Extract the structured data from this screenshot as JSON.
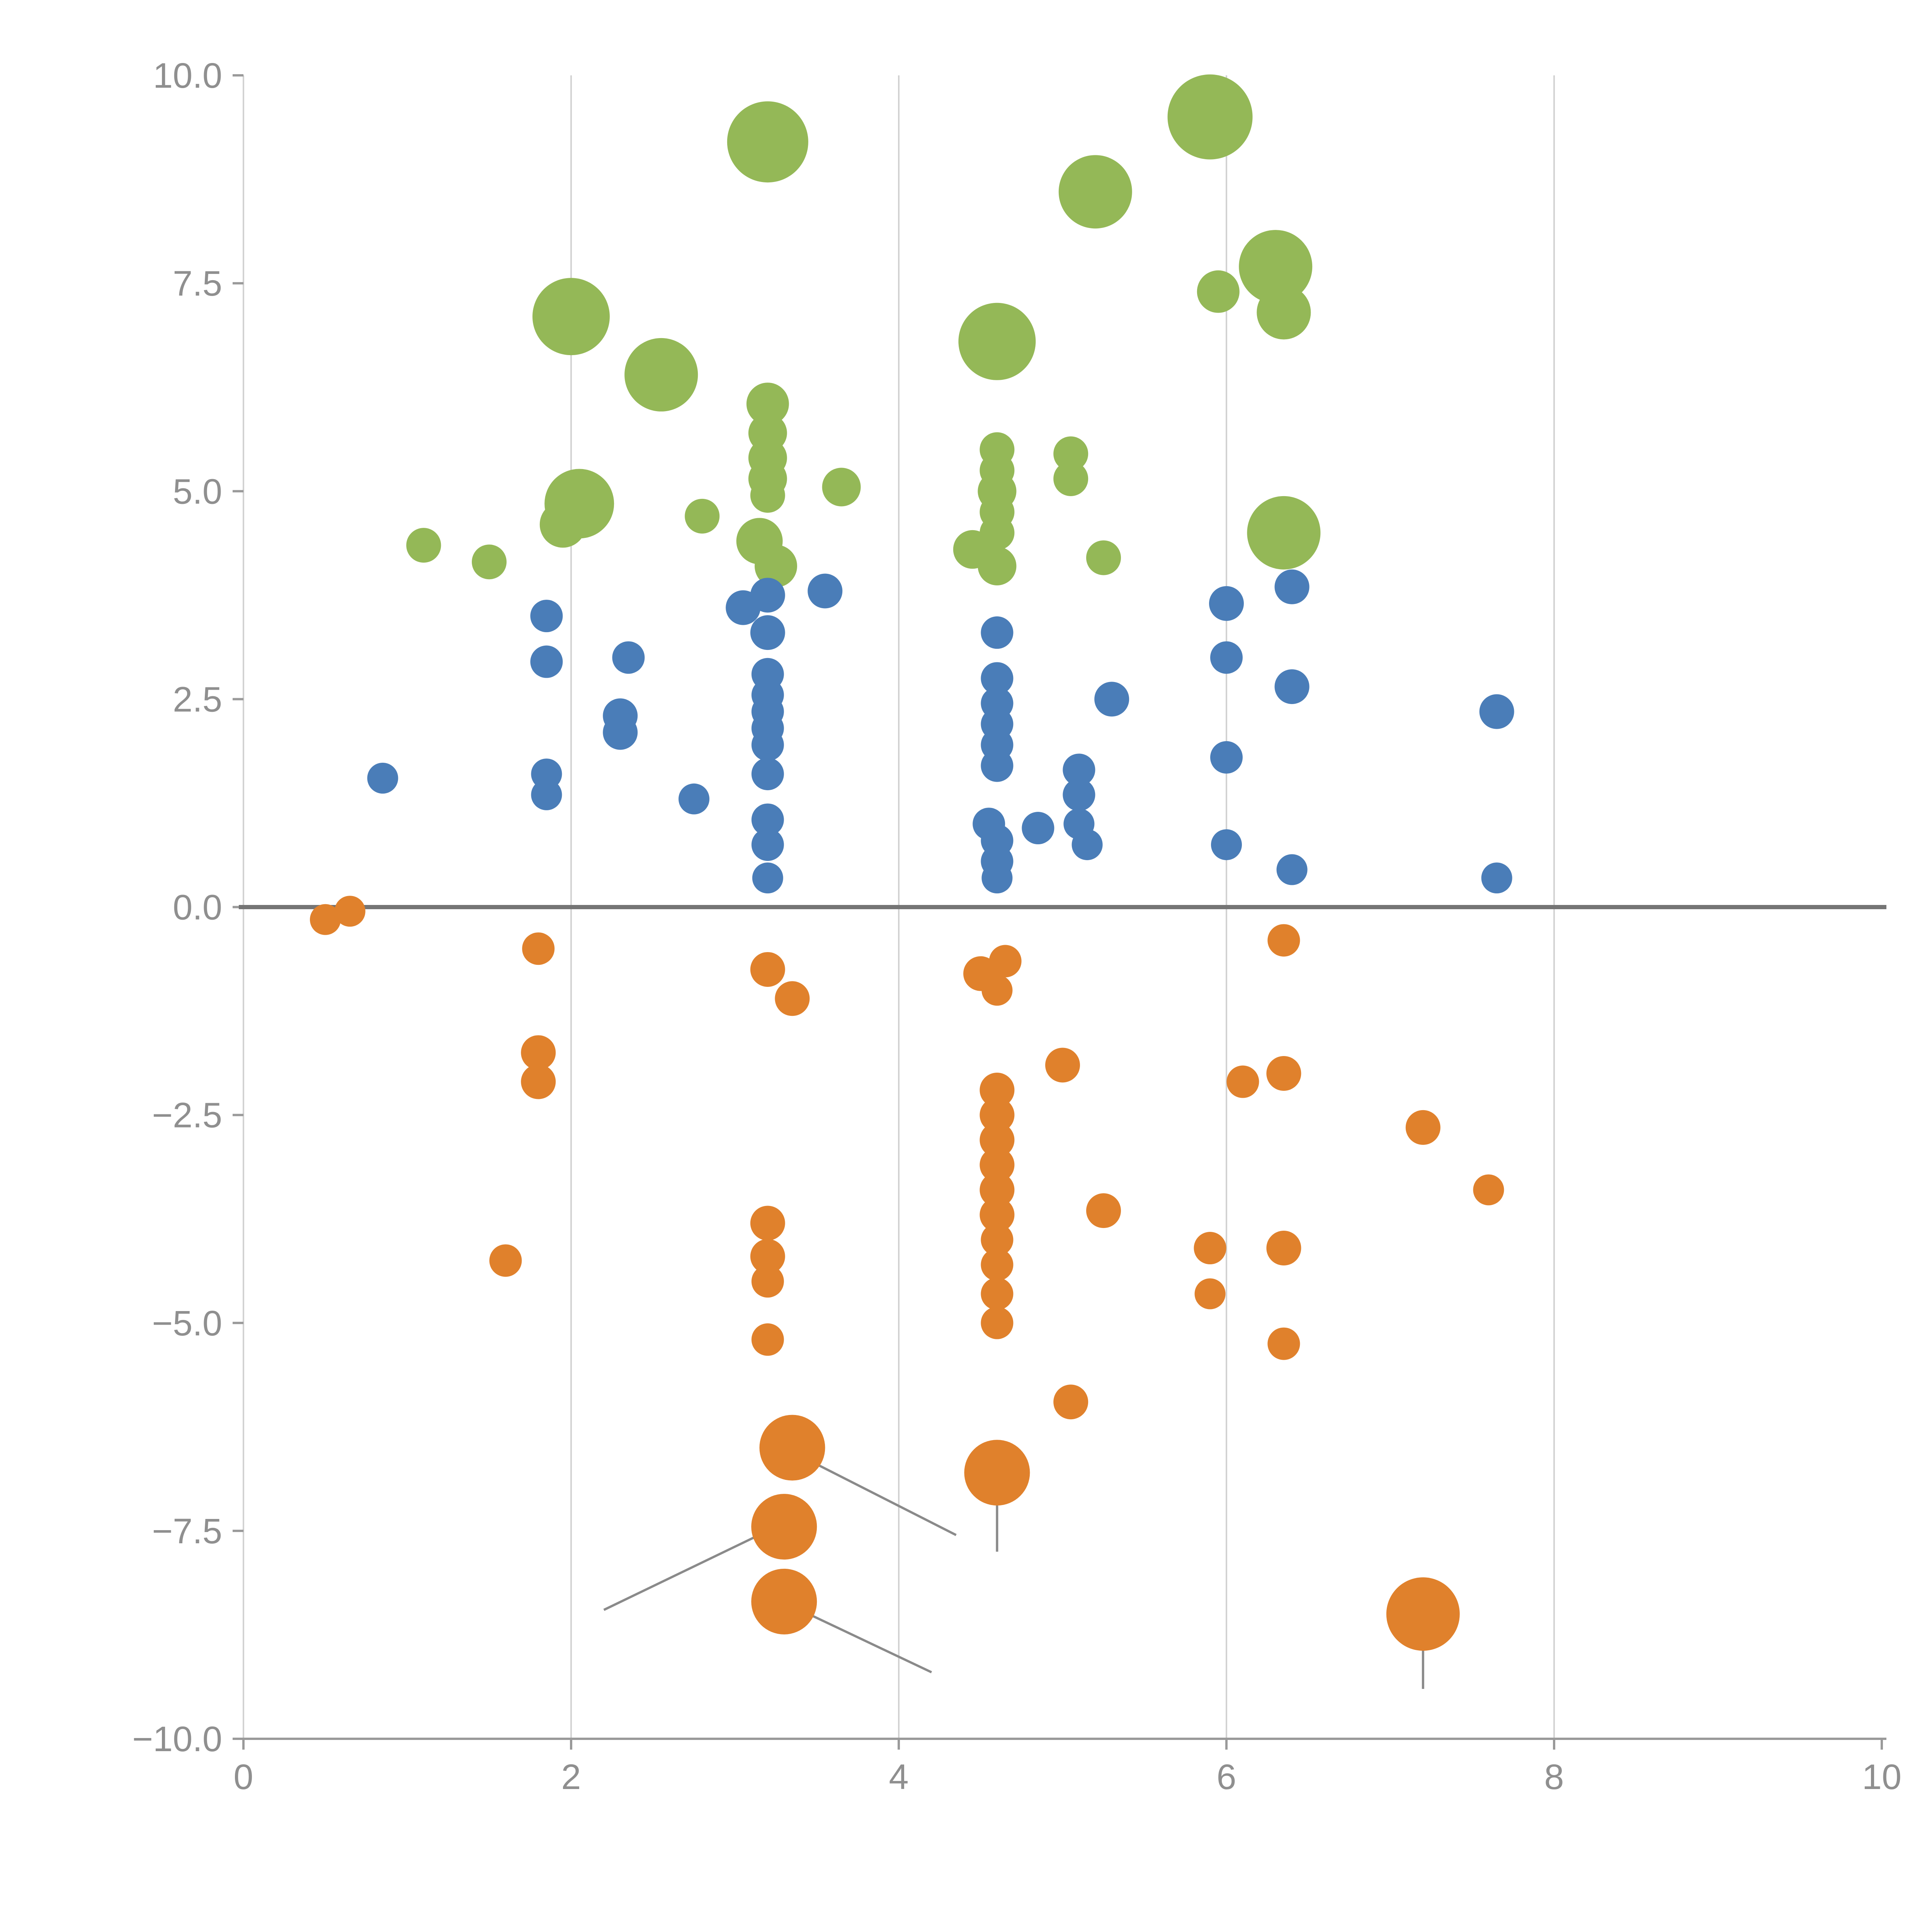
{
  "chart_data": {
    "type": "scatter",
    "title": "",
    "xlabel": "",
    "ylabel": "",
    "xlim": [
      0,
      10
    ],
    "ylim": [
      -10,
      10
    ],
    "x_ticks": {
      "values": [
        0,
        2,
        4,
        6,
        8,
        10
      ],
      "labels": [
        "0",
        "2",
        "4",
        "6",
        "8",
        "10"
      ]
    },
    "y_ticks": {
      "values": [
        -10,
        -7.5,
        -5,
        -2.5,
        0,
        2.5,
        5,
        7.5,
        10
      ],
      "labels": [
        "−10.0",
        "−7.5",
        "−5.0",
        "−2.5",
        "0.0",
        "2.5",
        "5.0",
        "7.5",
        "10.0"
      ]
    },
    "gridlines": {
      "vertical_x": [
        2,
        4,
        6,
        8
      ]
    },
    "zero_line_y": 0,
    "legend": "none",
    "colors": {
      "green": "#94b857",
      "blue": "#4a7db8",
      "orange": "#e0812c",
      "grid": "#d2d2d2",
      "axis": "#9a9a9a",
      "zero_line": "#757575",
      "tick_label": "#8f8f8f",
      "annotation_line": "#8a8a8a"
    },
    "series": [
      {
        "name": "green-cluster-top",
        "color_key": "green",
        "points": [
          [
            3.2,
            9.2,
            105
          ],
          [
            5.9,
            9.5,
            110
          ],
          [
            5.2,
            8.6,
            95
          ],
          [
            6.3,
            7.7,
            95
          ],
          [
            5.95,
            7.4,
            55
          ],
          [
            6.35,
            7.15,
            70
          ],
          [
            2.0,
            7.1,
            100
          ],
          [
            2.55,
            6.4,
            95
          ],
          [
            4.6,
            6.8,
            100
          ],
          [
            3.2,
            6.05,
            55
          ],
          [
            3.2,
            5.7,
            50
          ],
          [
            3.2,
            5.4,
            50
          ],
          [
            3.2,
            5.15,
            50
          ],
          [
            3.2,
            4.95,
            45
          ],
          [
            4.6,
            5.5,
            45
          ],
          [
            4.6,
            5.25,
            45
          ],
          [
            4.6,
            5.0,
            50
          ],
          [
            4.6,
            4.75,
            45
          ],
          [
            4.6,
            4.5,
            45
          ],
          [
            5.05,
            5.45,
            45
          ],
          [
            5.05,
            5.15,
            45
          ],
          [
            2.05,
            4.85,
            90
          ],
          [
            1.95,
            4.6,
            60
          ],
          [
            3.65,
            5.05,
            50
          ],
          [
            2.8,
            4.7,
            45
          ],
          [
            1.1,
            4.35,
            45
          ],
          [
            1.5,
            4.15,
            45
          ],
          [
            3.15,
            4.4,
            60
          ],
          [
            3.25,
            4.1,
            55
          ],
          [
            4.45,
            4.3,
            50
          ],
          [
            4.6,
            4.1,
            50
          ],
          [
            5.25,
            4.2,
            45
          ],
          [
            6.35,
            4.5,
            95
          ]
        ]
      },
      {
        "name": "blue-cluster-middle",
        "color_key": "blue",
        "points": [
          [
            0.85,
            1.55,
            40
          ],
          [
            1.85,
            3.5,
            42
          ],
          [
            1.85,
            2.95,
            42
          ],
          [
            1.85,
            1.6,
            40
          ],
          [
            1.85,
            1.35,
            40
          ],
          [
            2.35,
            3.0,
            42
          ],
          [
            2.3,
            2.3,
            45
          ],
          [
            2.3,
            2.1,
            45
          ],
          [
            2.75,
            1.3,
            40
          ],
          [
            3.05,
            3.6,
            45
          ],
          [
            3.2,
            3.75,
            45
          ],
          [
            3.55,
            3.8,
            45
          ],
          [
            3.2,
            3.3,
            45
          ],
          [
            3.2,
            2.8,
            42
          ],
          [
            3.2,
            2.55,
            42
          ],
          [
            3.2,
            2.35,
            42
          ],
          [
            3.2,
            2.15,
            42
          ],
          [
            3.2,
            1.95,
            42
          ],
          [
            3.2,
            1.6,
            42
          ],
          [
            3.2,
            1.05,
            42
          ],
          [
            3.2,
            0.75,
            42
          ],
          [
            3.2,
            0.35,
            40
          ],
          [
            4.6,
            3.3,
            42
          ],
          [
            4.6,
            2.75,
            42
          ],
          [
            4.6,
            2.45,
            42
          ],
          [
            4.6,
            2.2,
            42
          ],
          [
            4.6,
            1.95,
            42
          ],
          [
            4.6,
            1.7,
            42
          ],
          [
            4.55,
            1.0,
            42
          ],
          [
            4.6,
            0.8,
            42
          ],
          [
            4.6,
            0.55,
            42
          ],
          [
            4.6,
            0.35,
            40
          ],
          [
            4.85,
            0.95,
            42
          ],
          [
            5.1,
            1.65,
            42
          ],
          [
            5.1,
            1.35,
            42
          ],
          [
            5.1,
            1.0,
            40
          ],
          [
            5.15,
            0.75,
            40
          ],
          [
            5.3,
            2.5,
            45
          ],
          [
            6.0,
            3.65,
            45
          ],
          [
            6.0,
            3.0,
            42
          ],
          [
            6.0,
            1.8,
            42
          ],
          [
            6.0,
            0.75,
            40
          ],
          [
            6.4,
            3.85,
            45
          ],
          [
            6.4,
            2.65,
            45
          ],
          [
            6.4,
            0.45,
            40
          ],
          [
            7.65,
            2.35,
            45
          ],
          [
            7.65,
            0.35,
            40
          ]
        ]
      },
      {
        "name": "orange-cluster-bottom",
        "color_key": "orange",
        "points": [
          [
            0.5,
            -0.15,
            40
          ],
          [
            0.65,
            -0.05,
            40
          ],
          [
            1.8,
            -0.5,
            42
          ],
          [
            1.8,
            -1.75,
            45
          ],
          [
            1.8,
            -2.1,
            45
          ],
          [
            1.6,
            -4.25,
            42
          ],
          [
            3.2,
            -0.75,
            45
          ],
          [
            3.35,
            -1.1,
            45
          ],
          [
            3.2,
            -3.8,
            45
          ],
          [
            3.2,
            -4.2,
            45
          ],
          [
            3.2,
            -4.5,
            42
          ],
          [
            3.2,
            -5.2,
            42
          ],
          [
            3.35,
            -6.5,
            85
          ],
          [
            3.3,
            -7.45,
            85
          ],
          [
            3.3,
            -8.35,
            85
          ],
          [
            4.5,
            -0.8,
            45
          ],
          [
            4.65,
            -0.65,
            42
          ],
          [
            4.6,
            -1.0,
            40
          ],
          [
            4.6,
            -2.2,
            45
          ],
          [
            4.6,
            -2.5,
            45
          ],
          [
            4.6,
            -2.8,
            45
          ],
          [
            4.6,
            -3.1,
            45
          ],
          [
            4.6,
            -3.4,
            45
          ],
          [
            4.6,
            -3.7,
            45
          ],
          [
            4.6,
            -4.0,
            42
          ],
          [
            4.6,
            -4.3,
            42
          ],
          [
            4.6,
            -4.65,
            42
          ],
          [
            4.6,
            -5.0,
            42
          ],
          [
            4.6,
            -6.8,
            85
          ],
          [
            5.0,
            -1.9,
            45
          ],
          [
            5.05,
            -5.95,
            45
          ],
          [
            5.25,
            -3.65,
            45
          ],
          [
            6.1,
            -2.1,
            42
          ],
          [
            6.35,
            -2.0,
            45
          ],
          [
            6.35,
            -0.4,
            42
          ],
          [
            5.9,
            -4.1,
            42
          ],
          [
            5.9,
            -4.65,
            40
          ],
          [
            6.35,
            -4.1,
            45
          ],
          [
            6.35,
            -5.25,
            42
          ],
          [
            7.2,
            -2.65,
            45
          ],
          [
            7.6,
            -3.4,
            40
          ],
          [
            7.2,
            -8.5,
            95
          ]
        ]
      }
    ],
    "annotation_lines": [
      [
        3.45,
        -6.65,
        4.35,
        -7.55
      ],
      [
        3.2,
        -7.5,
        2.2,
        -8.45
      ],
      [
        3.45,
        -8.5,
        4.2,
        -9.2
      ],
      [
        4.6,
        -7.15,
        4.6,
        -7.75
      ],
      [
        7.2,
        -8.8,
        7.2,
        -9.4
      ]
    ]
  }
}
